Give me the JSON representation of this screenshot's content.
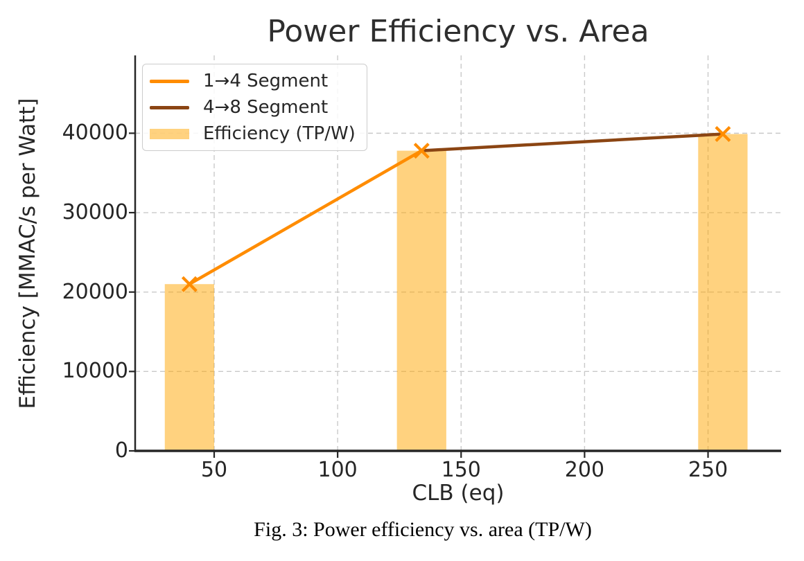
{
  "chart_data": {
    "type": "bar",
    "title": "Power Efficiency vs. Area",
    "xlabel": "CLB (eq)",
    "ylabel": "Efficiency [MMAC/s per Watt]",
    "caption": "Fig. 3: Power efficiency vs. area (TP/W)",
    "categories_x": [
      40,
      134,
      256
    ],
    "bars": {
      "label": "Efficiency (TP/W)",
      "values": [
        21000,
        37800,
        39900
      ],
      "width": 20,
      "color": "#FFA500",
      "alpha": 0.5
    },
    "series": [
      {
        "name": "1→4 Segment",
        "type": "line",
        "color": "#FF8C00",
        "points": [
          [
            40,
            21000
          ],
          [
            134,
            37800
          ]
        ]
      },
      {
        "name": "4→8 Segment",
        "type": "line",
        "color": "#8B4513",
        "points": [
          [
            134,
            37800
          ],
          [
            256,
            39900
          ]
        ]
      }
    ],
    "markers": {
      "style": "x",
      "color": "#FF8C00",
      "points": [
        [
          40,
          21000
        ],
        [
          134,
          37800
        ],
        [
          256,
          39900
        ]
      ]
    },
    "xticks": [
      50,
      100,
      150,
      200,
      250
    ],
    "yticks": [
      0,
      10000,
      20000,
      30000,
      40000
    ],
    "xlim": [
      18,
      279.6
    ],
    "ylim": [
      0,
      49800
    ],
    "grid": true,
    "grid_color": "#c9c9c9",
    "axis_color": "#262626",
    "text_color": "#262626",
    "legend": {
      "position": "upper left",
      "entries": [
        {
          "label": "1→4 Segment",
          "kind": "line",
          "color": "#FF8C00",
          "alpha": 1
        },
        {
          "label": "4→8 Segment",
          "kind": "line",
          "color": "#8B4513",
          "alpha": 1
        },
        {
          "label": "Efficiency (TP/W)",
          "kind": "patch",
          "color": "#FFA500",
          "alpha": 0.5
        }
      ]
    }
  }
}
